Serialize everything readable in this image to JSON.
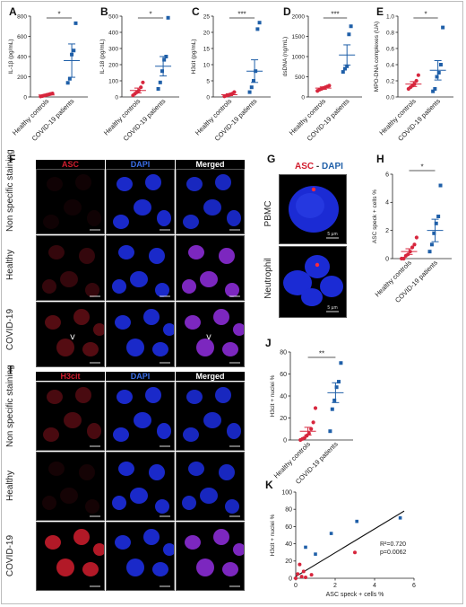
{
  "panel_labels": {
    "A": "A",
    "B": "B",
    "C": "C",
    "D": "D",
    "E": "E",
    "F": "F",
    "G": "G",
    "H": "H",
    "I": "I",
    "J": "J",
    "K": "K"
  },
  "colors": {
    "healthy": "#d7263d",
    "covid": "#1f5fa8",
    "blue_nuclei": "#1b2bd4",
    "red_stain": "#d11d2e"
  },
  "panel_F": {
    "columns": [
      "ASC",
      "DAPI",
      "Merged"
    ],
    "rows": [
      "Non specific staining",
      "Healthy",
      "COVID-19"
    ],
    "arrow": "v"
  },
  "panel_G": {
    "title_asc": "ASC",
    "title_sep": " - ",
    "title_dapi": "DAPI",
    "rows": [
      "PBMC",
      "Neutrophil"
    ],
    "scale": "5 µm"
  },
  "panel_I": {
    "columns": [
      "H3cit",
      "DAPI",
      "Merged"
    ],
    "rows": [
      "Non specific staining",
      "Healthy",
      "COVID-19"
    ]
  },
  "chart_data": [
    {
      "panel": "A",
      "type": "scatter",
      "categories": [
        "Healthy controls",
        "COVID-19 patients"
      ],
      "ylabel": "IL-1β (pg/mL)",
      "ylim": [
        0,
        800
      ],
      "yticks": [
        0,
        200,
        400,
        600,
        800
      ],
      "significance": "*",
      "series": [
        {
          "name": "Healthy controls",
          "values": [
            5,
            10,
            15,
            20,
            25,
            30,
            35
          ],
          "mean": 20,
          "sem": 6
        },
        {
          "name": "COVID-19 patients",
          "values": [
            140,
            180,
            420,
            460,
            730
          ],
          "mean": 360,
          "sem": 165
        }
      ]
    },
    {
      "panel": "B",
      "type": "scatter",
      "categories": [
        "Healthy controls",
        "COVID-19 patients"
      ],
      "ylabel": "IL-18 (pg/mL)",
      "ylim": [
        0,
        500
      ],
      "yticks": [
        0,
        100,
        200,
        300,
        400,
        500
      ],
      "significance": "*",
      "series": [
        {
          "name": "Healthy controls",
          "values": [
            10,
            20,
            30,
            40,
            60,
            90
          ],
          "mean": 40,
          "sem": 15
        },
        {
          "name": "COVID-19 patients",
          "values": [
            50,
            90,
            160,
            230,
            250,
            490
          ],
          "mean": 190,
          "sem": 60
        }
      ]
    },
    {
      "panel": "C",
      "type": "scatter",
      "categories": [
        "Healthy controls",
        "COVID-19 patients"
      ],
      "ylabel": "H3cit (pg/mL)",
      "ylim": [
        0,
        25
      ],
      "yticks": [
        0,
        5,
        10,
        15,
        20,
        25
      ],
      "significance": "***",
      "series": [
        {
          "name": "Healthy controls",
          "values": [
            0.2,
            0.4,
            0.6,
            0.8,
            1.0,
            1.5
          ],
          "mean": 0.7,
          "sem": 0.3
        },
        {
          "name": "COVID-19 patients",
          "values": [
            1.5,
            3,
            5,
            8,
            21,
            23
          ],
          "mean": 8,
          "sem": 3.5
        }
      ]
    },
    {
      "panel": "D",
      "type": "scatter",
      "categories": [
        "Healthy controls",
        "COVID-19 patients"
      ],
      "ylabel": "dsDNA (ng/mL)",
      "ylim": [
        0,
        2000
      ],
      "yticks": [
        0,
        500,
        1000,
        1500,
        2000
      ],
      "significance": "***",
      "series": [
        {
          "name": "Healthy controls",
          "values": [
            150,
            180,
            200,
            220,
            240,
            260,
            280
          ],
          "mean": 220,
          "sem": 30
        },
        {
          "name": "COVID-19 patients",
          "values": [
            620,
            700,
            760,
            1550,
            1750
          ],
          "mean": 1040,
          "sem": 250
        }
      ]
    },
    {
      "panel": "E",
      "type": "scatter",
      "categories": [
        "Healthy controls",
        "COVID-19 patients"
      ],
      "ylabel": "MPO-DNA complexes (UA)",
      "ylim": [
        0,
        1.0
      ],
      "yticks": [
        0.0,
        0.2,
        0.4,
        0.6,
        0.8,
        1.0
      ],
      "significance": "*",
      "series": [
        {
          "name": "Healthy controls",
          "values": [
            0.1,
            0.12,
            0.14,
            0.16,
            0.2,
            0.27
          ],
          "mean": 0.16,
          "sem": 0.03
        },
        {
          "name": "COVID-19 patients",
          "values": [
            0.07,
            0.1,
            0.25,
            0.3,
            0.4,
            0.86
          ],
          "mean": 0.33,
          "sem": 0.12
        }
      ]
    },
    {
      "panel": "H",
      "type": "scatter",
      "categories": [
        "Healthy controls",
        "COVID-19 patients"
      ],
      "ylabel": "ASC speck + cells %",
      "ylim": [
        0,
        6
      ],
      "yticks": [
        0,
        2,
        4,
        6
      ],
      "significance": "*",
      "series": [
        {
          "name": "Healthy controls",
          "values": [
            0,
            0,
            0.2,
            0.3,
            0.5,
            0.8,
            1.0,
            1.5
          ],
          "mean": 0.5,
          "sem": 0.2
        },
        {
          "name": "COVID-19 patients",
          "values": [
            0.5,
            1.0,
            1.8,
            2.5,
            3.0,
            5.2
          ],
          "mean": 2.0,
          "sem": 0.8
        }
      ]
    },
    {
      "panel": "J",
      "type": "scatter",
      "categories": [
        "Healthy controls",
        "COVID-19 patients"
      ],
      "ylabel": "H3cit + nuclei %",
      "ylim": [
        0,
        80
      ],
      "yticks": [
        0,
        20,
        40,
        60,
        80
      ],
      "significance": "**",
      "series": [
        {
          "name": "Healthy controls",
          "values": [
            0,
            1,
            2,
            4,
            6,
            10,
            16,
            29
          ],
          "mean": 8,
          "sem": 3.5
        },
        {
          "name": "COVID-19 patients",
          "values": [
            8,
            28,
            36,
            48,
            53,
            70
          ],
          "mean": 43,
          "sem": 9
        }
      ]
    },
    {
      "panel": "K",
      "type": "scatter",
      "xlabel": "ASC speck + cells %",
      "ylabel": "H3cit + nuclei %",
      "xlim": [
        0,
        6
      ],
      "ylim": [
        0,
        100
      ],
      "xticks": [
        0,
        2,
        4,
        6
      ],
      "yticks": [
        0,
        20,
        40,
        60,
        80,
        100
      ],
      "annotation_r2": "R²=0.720",
      "annotation_p": "p=0.0062",
      "regression": {
        "x0": 0,
        "y0": 2,
        "x1": 5.5,
        "y1": 78
      },
      "points": [
        {
          "x": 0,
          "y": 0,
          "group": "Healthy controls"
        },
        {
          "x": 0.1,
          "y": 5,
          "group": "Healthy controls"
        },
        {
          "x": 0.2,
          "y": 16,
          "group": "Healthy controls"
        },
        {
          "x": 0.3,
          "y": 2,
          "group": "Healthy controls"
        },
        {
          "x": 0.4,
          "y": 8,
          "group": "Healthy controls"
        },
        {
          "x": 0.5,
          "y": 1,
          "group": "Healthy controls"
        },
        {
          "x": 0.8,
          "y": 4,
          "group": "Healthy controls"
        },
        {
          "x": 3.0,
          "y": 30,
          "group": "Healthy controls"
        },
        {
          "x": 0.5,
          "y": 36,
          "group": "COVID-19 patients"
        },
        {
          "x": 1.0,
          "y": 28,
          "group": "COVID-19 patients"
        },
        {
          "x": 1.8,
          "y": 52,
          "group": "COVID-19 patients"
        },
        {
          "x": 3.1,
          "y": 66,
          "group": "COVID-19 patients"
        },
        {
          "x": 5.3,
          "y": 70,
          "group": "COVID-19 patients"
        }
      ]
    }
  ]
}
